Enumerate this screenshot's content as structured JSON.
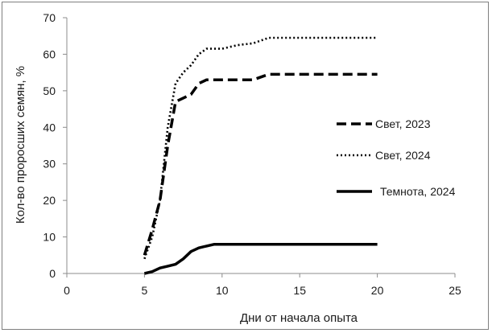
{
  "chart_data": {
    "type": "line",
    "xlabel": "Дни от начала опыта",
    "ylabel": "Кол-во проросших семян, %",
    "xlim": [
      0,
      25
    ],
    "ylim": [
      0,
      70
    ],
    "xticks": [
      0,
      5,
      10,
      15,
      20,
      25
    ],
    "yticks": [
      0,
      10,
      20,
      30,
      40,
      50,
      60,
      70
    ],
    "grid": false,
    "legend_position": "right",
    "series": [
      {
        "name": "Свет, 2023",
        "style": "dashed",
        "color": "#000000",
        "x": [
          5,
          5.5,
          6,
          6.5,
          7,
          7.5,
          8,
          8.5,
          9,
          10,
          11,
          12,
          13,
          14,
          15,
          16,
          17,
          18,
          19,
          20
        ],
        "y": [
          5,
          12,
          20,
          35,
          47,
          48,
          49,
          52,
          53,
          53,
          53,
          53,
          54.5,
          54.5,
          54.5,
          54.5,
          54.5,
          54.5,
          54.5,
          54.5
        ]
      },
      {
        "name": "Свет, 2024",
        "style": "dotted",
        "color": "#000000",
        "x": [
          5,
          5.5,
          6,
          6.5,
          7,
          7.5,
          8,
          8.5,
          9,
          10,
          11,
          12,
          13,
          14,
          15,
          16,
          17,
          18,
          19,
          20
        ],
        "y": [
          4,
          10,
          20,
          40,
          52,
          55,
          57,
          60,
          61.5,
          61.5,
          62.5,
          63,
          64.5,
          64.5,
          64.5,
          64.5,
          64.5,
          64.5,
          64.5,
          64.5
        ]
      },
      {
        "name": "Темнота, 2024",
        "style": "solid",
        "color": "#000000",
        "x": [
          5,
          5.5,
          6,
          6.5,
          7,
          7.5,
          8,
          8.5,
          9,
          9.5,
          10,
          11,
          12,
          13,
          14,
          15,
          16,
          17,
          18,
          19,
          20
        ],
        "y": [
          0,
          0.5,
          1.5,
          2,
          2.5,
          4,
          6,
          7,
          7.5,
          8,
          8,
          8,
          8,
          8,
          8,
          8,
          8,
          8,
          8,
          8,
          8
        ]
      }
    ]
  }
}
